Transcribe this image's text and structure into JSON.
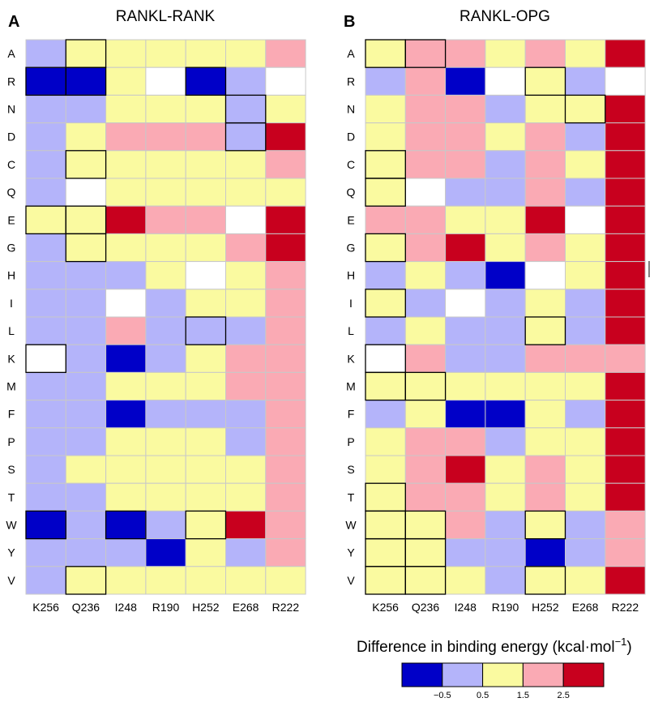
{
  "figure": {
    "legend": {
      "title": "Difference in binding energy (kcal·mol",
      "title_sup": "−1",
      "title_close": ")",
      "colors": [
        "#0000c8",
        "#b4b4fa",
        "#fafaa0",
        "#faaab4",
        "#c8001e"
      ],
      "ticks": [
        "−0.5",
        "0.5",
        "1.5",
        "2.5"
      ]
    },
    "palette": {
      "W": "#ffffff",
      "DB": "#0000c8",
      "LB": "#b4b4fa",
      "Y": "#fafaa0",
      "P": "#faaab4",
      "R": "#c8001e"
    }
  },
  "chart_data": [
    {
      "type": "heatmap",
      "panel_label": "A",
      "title": "RANKL-RANK",
      "x_categories": [
        "K256",
        "Q236",
        "I248",
        "R190",
        "H252",
        "E268",
        "R222"
      ],
      "y_categories": [
        "A",
        "R",
        "N",
        "D",
        "C",
        "Q",
        "E",
        "G",
        "H",
        "I",
        "L",
        "K",
        "M",
        "F",
        "P",
        "S",
        "T",
        "W",
        "Y",
        "V"
      ],
      "value_bins": [
        "W = white",
        "DB = below −0.5",
        "LB = −0.5 to 0.5",
        "Y = 0.5 to 1.5",
        "P = 1.5 to 2.5",
        "R = above 2.5"
      ],
      "cells": [
        [
          "LB",
          "Y",
          "Y",
          "Y",
          "Y",
          "Y",
          "P"
        ],
        [
          "DB",
          "DB",
          "Y",
          "W",
          "DB",
          "LB",
          "W"
        ],
        [
          "LB",
          "LB",
          "Y",
          "Y",
          "Y",
          "LB",
          "Y"
        ],
        [
          "LB",
          "Y",
          "P",
          "P",
          "P",
          "LB",
          "R"
        ],
        [
          "LB",
          "Y",
          "Y",
          "Y",
          "Y",
          "Y",
          "P"
        ],
        [
          "LB",
          "W",
          "Y",
          "Y",
          "Y",
          "Y",
          "Y"
        ],
        [
          "Y",
          "Y",
          "R",
          "P",
          "P",
          "W",
          "R"
        ],
        [
          "LB",
          "Y",
          "Y",
          "Y",
          "Y",
          "P",
          "R"
        ],
        [
          "LB",
          "LB",
          "LB",
          "Y",
          "W",
          "Y",
          "P"
        ],
        [
          "LB",
          "LB",
          "W",
          "LB",
          "Y",
          "Y",
          "P"
        ],
        [
          "LB",
          "LB",
          "P",
          "LB",
          "LB",
          "LB",
          "P"
        ],
        [
          "W",
          "LB",
          "DB",
          "LB",
          "Y",
          "P",
          "P"
        ],
        [
          "LB",
          "LB",
          "Y",
          "Y",
          "Y",
          "P",
          "P"
        ],
        [
          "LB",
          "LB",
          "DB",
          "LB",
          "LB",
          "LB",
          "P"
        ],
        [
          "LB",
          "LB",
          "Y",
          "Y",
          "Y",
          "LB",
          "P"
        ],
        [
          "LB",
          "Y",
          "Y",
          "Y",
          "Y",
          "Y",
          "P"
        ],
        [
          "LB",
          "LB",
          "Y",
          "Y",
          "Y",
          "Y",
          "P"
        ],
        [
          "DB",
          "LB",
          "DB",
          "LB",
          "Y",
          "R",
          "P"
        ],
        [
          "LB",
          "LB",
          "LB",
          "DB",
          "Y",
          "LB",
          "P"
        ],
        [
          "LB",
          "Y",
          "Y",
          "Y",
          "Y",
          "Y",
          "Y"
        ]
      ],
      "outlined_cells": [
        [
          0,
          1
        ],
        [
          1,
          0
        ],
        [
          1,
          1
        ],
        [
          1,
          4
        ],
        [
          2,
          5
        ],
        [
          3,
          5
        ],
        [
          4,
          1
        ],
        [
          6,
          0
        ],
        [
          6,
          1
        ],
        [
          7,
          1
        ],
        [
          10,
          4
        ],
        [
          11,
          0
        ],
        [
          17,
          0
        ],
        [
          17,
          2
        ],
        [
          17,
          4
        ],
        [
          19,
          1
        ]
      ]
    },
    {
      "type": "heatmap",
      "panel_label": "B",
      "title": "RANKL-OPG",
      "x_categories": [
        "K256",
        "Q236",
        "I248",
        "R190",
        "H252",
        "E268",
        "R222"
      ],
      "y_categories": [
        "A",
        "R",
        "N",
        "D",
        "C",
        "Q",
        "E",
        "G",
        "H",
        "I",
        "L",
        "K",
        "M",
        "F",
        "P",
        "S",
        "T",
        "W",
        "Y",
        "V"
      ],
      "value_bins": [
        "W = white",
        "DB = below −0.5",
        "LB = −0.5 to 0.5",
        "Y = 0.5 to 1.5",
        "P = 1.5 to 2.5",
        "R = above 2.5"
      ],
      "cells": [
        [
          "Y",
          "P",
          "P",
          "Y",
          "P",
          "Y",
          "R"
        ],
        [
          "LB",
          "P",
          "DB",
          "W",
          "Y",
          "LB",
          "W"
        ],
        [
          "Y",
          "P",
          "P",
          "LB",
          "Y",
          "Y",
          "R"
        ],
        [
          "Y",
          "P",
          "P",
          "Y",
          "P",
          "LB",
          "R"
        ],
        [
          "Y",
          "P",
          "P",
          "LB",
          "P",
          "Y",
          "R"
        ],
        [
          "Y",
          "W",
          "LB",
          "LB",
          "P",
          "LB",
          "R"
        ],
        [
          "P",
          "P",
          "Y",
          "Y",
          "R",
          "W",
          "R"
        ],
        [
          "Y",
          "P",
          "R",
          "Y",
          "P",
          "Y",
          "R"
        ],
        [
          "LB",
          "Y",
          "LB",
          "DB",
          "W",
          "Y",
          "R"
        ],
        [
          "Y",
          "LB",
          "W",
          "LB",
          "Y",
          "LB",
          "R"
        ],
        [
          "LB",
          "Y",
          "LB",
          "LB",
          "Y",
          "LB",
          "R"
        ],
        [
          "W",
          "P",
          "LB",
          "LB",
          "P",
          "P",
          "P"
        ],
        [
          "Y",
          "Y",
          "Y",
          "Y",
          "Y",
          "Y",
          "R"
        ],
        [
          "LB",
          "Y",
          "DB",
          "DB",
          "Y",
          "LB",
          "R"
        ],
        [
          "Y",
          "P",
          "P",
          "LB",
          "Y",
          "Y",
          "R"
        ],
        [
          "Y",
          "P",
          "R",
          "Y",
          "P",
          "Y",
          "R"
        ],
        [
          "Y",
          "P",
          "P",
          "Y",
          "P",
          "Y",
          "R"
        ],
        [
          "Y",
          "Y",
          "P",
          "LB",
          "Y",
          "LB",
          "P"
        ],
        [
          "Y",
          "Y",
          "LB",
          "LB",
          "DB",
          "LB",
          "P"
        ],
        [
          "Y",
          "Y",
          "Y",
          "LB",
          "Y",
          "Y",
          "R"
        ]
      ],
      "outlined_cells": [
        [
          0,
          0
        ],
        [
          0,
          1
        ],
        [
          1,
          4
        ],
        [
          2,
          5
        ],
        [
          4,
          0
        ],
        [
          5,
          0
        ],
        [
          7,
          0
        ],
        [
          9,
          0
        ],
        [
          10,
          4
        ],
        [
          11,
          0
        ],
        [
          12,
          0
        ],
        [
          12,
          1
        ],
        [
          16,
          0
        ],
        [
          17,
          0
        ],
        [
          17,
          1
        ],
        [
          17,
          4
        ],
        [
          18,
          0
        ],
        [
          18,
          1
        ],
        [
          19,
          0
        ],
        [
          19,
          1
        ],
        [
          19,
          4
        ]
      ]
    }
  ]
}
